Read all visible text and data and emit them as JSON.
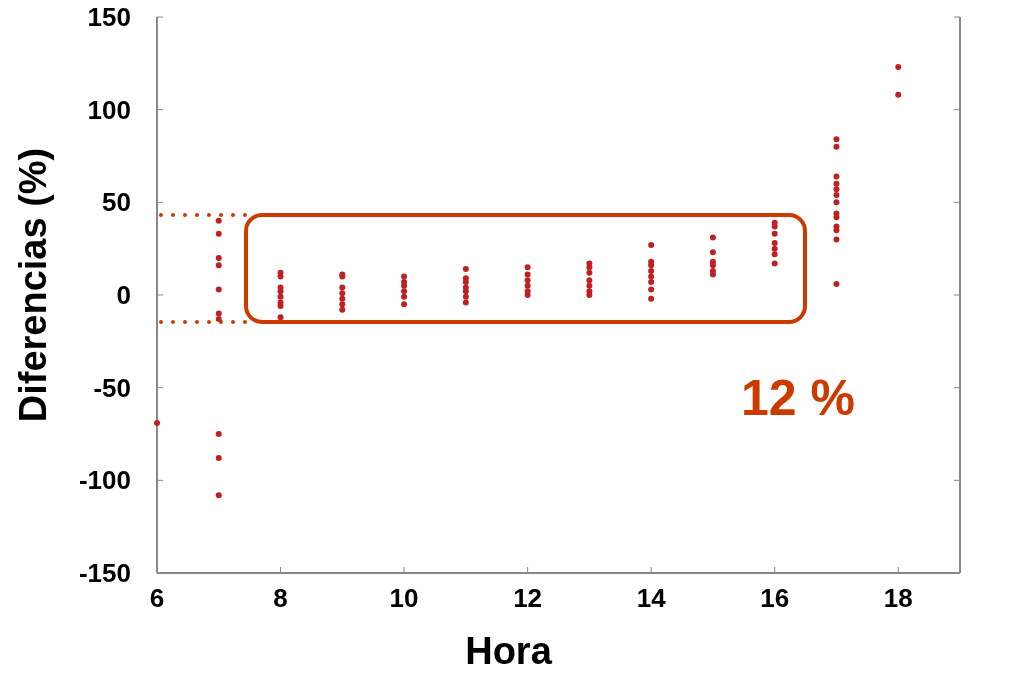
{
  "chart_data": {
    "type": "scatter",
    "xlabel": "Hora",
    "ylabel": "Diferencias (%)",
    "xlim": [
      6,
      19
    ],
    "ylim": [
      -150,
      150
    ],
    "xticks": [
      6,
      8,
      10,
      12,
      14,
      16,
      18
    ],
    "yticks": [
      -150,
      -100,
      -50,
      0,
      50,
      100,
      150
    ],
    "grid": false,
    "marker": "circle",
    "annotations": [
      "12 %"
    ],
    "series": [
      {
        "color": "#c0201f",
        "x": [
          6,
          7,
          7,
          7,
          7,
          7,
          7,
          7,
          7,
          7,
          7,
          8,
          8,
          8,
          8,
          8,
          8,
          8,
          8,
          9,
          9,
          9,
          9,
          9,
          9,
          9,
          10,
          10,
          10,
          10,
          10,
          10,
          11,
          11,
          11,
          11,
          11,
          11,
          11,
          12,
          12,
          12,
          12,
          12,
          12,
          13,
          13,
          13,
          13,
          13,
          13,
          13,
          14,
          14,
          14,
          14,
          14,
          14,
          14,
          14,
          15,
          15,
          15,
          15,
          15,
          15,
          16,
          16,
          16,
          16,
          16,
          16,
          16,
          17,
          17,
          17,
          17,
          17,
          17,
          17,
          17,
          17,
          17,
          17,
          17,
          17,
          18,
          18
        ],
        "values": [
          -69,
          40,
          33,
          20,
          16,
          3,
          -10,
          -13,
          -75,
          -88,
          -108,
          12,
          10,
          4,
          2,
          -1,
          -4,
          -6,
          -12,
          11,
          10,
          4,
          1,
          -2,
          -5,
          -8,
          10,
          7,
          5,
          2,
          -1,
          -5,
          14,
          9,
          7,
          4,
          2,
          -1,
          -4,
          15,
          11,
          8,
          5,
          2,
          0,
          17,
          15,
          12,
          8,
          5,
          2,
          0,
          27,
          18,
          16,
          13,
          10,
          7,
          3,
          -2,
          31,
          23,
          18,
          16,
          13,
          11,
          39,
          37,
          33,
          28,
          25,
          22,
          17,
          84,
          80,
          64,
          60,
          57,
          54,
          50,
          44,
          42,
          37,
          35,
          30,
          6,
          123,
          108
        ]
      }
    ]
  }
}
